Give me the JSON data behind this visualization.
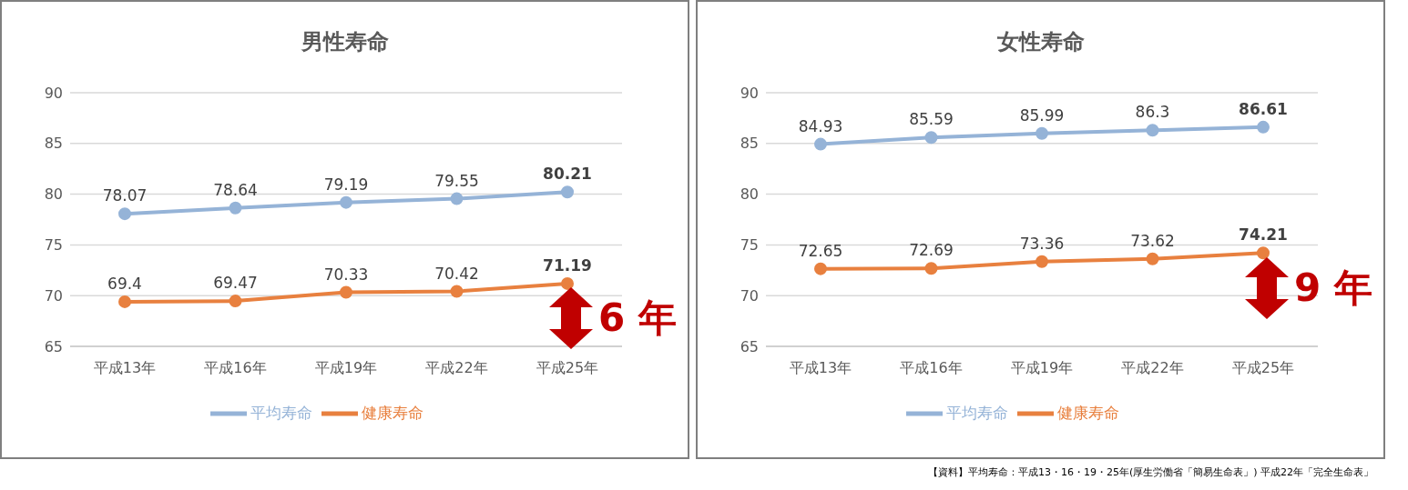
{
  "chart_data": [
    {
      "type": "line",
      "title": "男性寿命",
      "categories": [
        "平成13年",
        "平成16年",
        "平成19年",
        "平成22年",
        "平成25年"
      ],
      "series": [
        {
          "name": "平均寿命",
          "color": "#95b3d7",
          "values": [
            78.07,
            78.64,
            79.19,
            79.55,
            80.21
          ]
        },
        {
          "name": "健康寿命",
          "color": "#e8803f",
          "values": [
            69.4,
            69.47,
            70.33,
            70.42,
            71.19
          ]
        }
      ],
      "ylim": [
        65,
        90
      ],
      "yticks": [
        65,
        70,
        75,
        80,
        85,
        90
      ],
      "grid": "y",
      "legend": "bottom",
      "marker": "circle",
      "line_style": "solid",
      "data_labels": true,
      "annotations": [
        "6 年"
      ]
    },
    {
      "type": "line",
      "title": "女性寿命",
      "categories": [
        "平成13年",
        "平成16年",
        "平成19年",
        "平成22年",
        "平成25年"
      ],
      "series": [
        {
          "name": "平均寿命",
          "color": "#95b3d7",
          "values": [
            84.93,
            85.59,
            85.99,
            86.3,
            86.61
          ]
        },
        {
          "name": "健康寿命",
          "color": "#e8803f",
          "values": [
            72.65,
            72.69,
            73.36,
            73.62,
            74.21
          ]
        }
      ],
      "ylim": [
        65,
        90
      ],
      "yticks": [
        65,
        70,
        75,
        80,
        85,
        90
      ],
      "grid": "y",
      "legend": "bottom",
      "marker": "circle",
      "line_style": "solid",
      "data_labels": true,
      "annotations": [
        "9 年",
        "【資料】平均寿命：平成13・16・19・25年(厚生労働省「簡易生命表」) 平成22年「完全生命表」"
      ]
    }
  ]
}
